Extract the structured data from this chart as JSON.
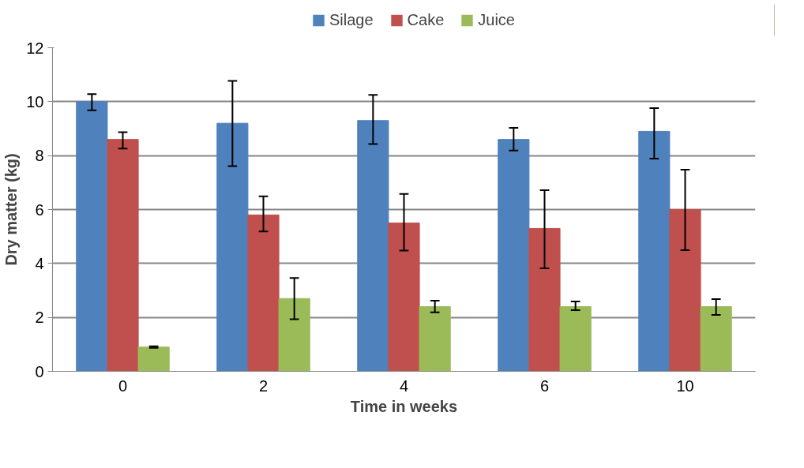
{
  "chart_data": {
    "type": "bar",
    "xlabel": "Time in weeks",
    "ylabel": "Dry matter (kg)",
    "categories": [
      "0",
      "2",
      "4",
      "6",
      "10"
    ],
    "series": [
      {
        "name": "Silage",
        "color": "#4f81bd",
        "values": [
          10.0,
          9.2,
          9.3,
          8.6,
          8.9
        ],
        "errors": [
          [
            9.68,
            10.28
          ],
          [
            7.61,
            10.77
          ],
          [
            8.43,
            10.25
          ],
          [
            8.19,
            9.03
          ],
          [
            7.89,
            9.76
          ]
        ]
      },
      {
        "name": "Cake",
        "color": "#c0504d",
        "values": [
          8.6,
          5.8,
          5.5,
          5.3,
          6.0
        ],
        "errors": [
          [
            8.26,
            8.87
          ],
          [
            5.19,
            6.49
          ],
          [
            4.48,
            6.58
          ],
          [
            3.82,
            6.72
          ],
          [
            4.49,
            7.48
          ]
        ]
      },
      {
        "name": "Juice",
        "color": "#9bbb59",
        "values": [
          0.9,
          2.7,
          2.4,
          2.4,
          2.4
        ],
        "errors": [
          0.03,
          [
            1.93,
            3.46
          ],
          [
            2.19,
            2.62
          ],
          [
            2.27,
            2.59
          ],
          [
            2.09,
            2.68
          ]
        ]
      }
    ],
    "ylim": [
      0,
      12
    ],
    "yticks": [
      0,
      2,
      4,
      6,
      8,
      10,
      12
    ],
    "grid": "y",
    "legend": "top"
  }
}
